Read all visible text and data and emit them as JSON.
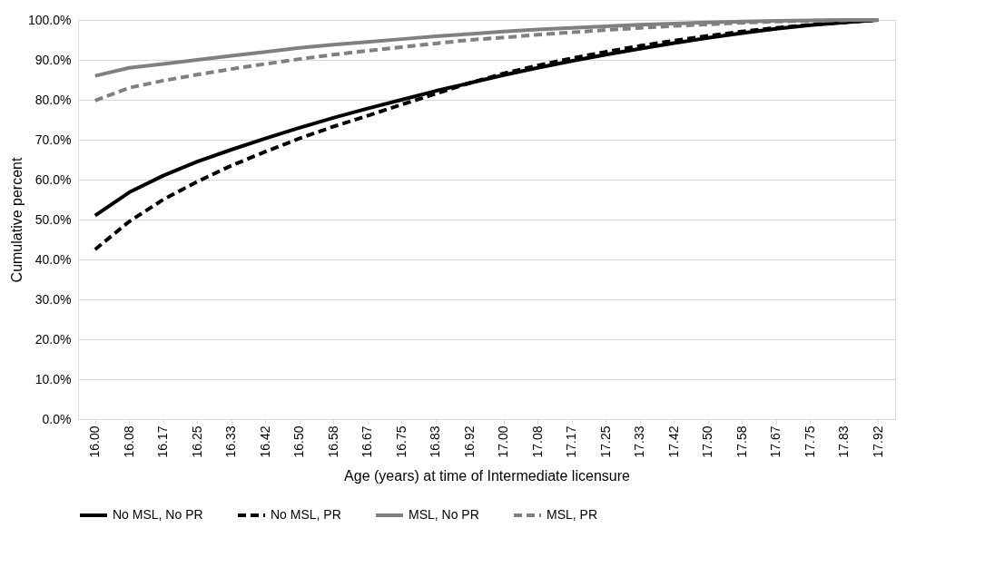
{
  "chart_data": {
    "type": "line",
    "xlabel": "Age (years) at time of Intermediate licensure",
    "ylabel": "Cumulative percent",
    "categories": [
      "16.00",
      "16.08",
      "16.17",
      "16.25",
      "16.33",
      "16.42",
      "16.50",
      "16.58",
      "16.67",
      "16.75",
      "16.83",
      "16.92",
      "17.00",
      "17.08",
      "17.17",
      "17.25",
      "17.33",
      "17.42",
      "17.50",
      "17.58",
      "17.67",
      "17.75",
      "17.83",
      "17.92"
    ],
    "series": [
      {
        "name": "No MSL, No PR",
        "color": "#000000",
        "line_style": "solid",
        "values": [
          51,
          56.8,
          61,
          64.5,
          67.5,
          70.3,
          73,
          75.5,
          77.8,
          80,
          82.2,
          84.2,
          86.2,
          88,
          89.7,
          91.3,
          92.8,
          94.2,
          95.5,
          96.7,
          97.8,
          98.7,
          99.4,
          100
        ]
      },
      {
        "name": "No MSL, PR",
        "color": "#000000",
        "line_style": "dashed",
        "values": [
          42.5,
          49.5,
          55,
          59.5,
          63.5,
          67,
          70.3,
          73.3,
          76,
          78.8,
          81.5,
          84.2,
          86.6,
          88.6,
          90.4,
          92,
          93.5,
          94.8,
          96,
          97.1,
          98,
          98.8,
          99.4,
          100
        ]
      },
      {
        "name": "MSL, No PR",
        "color": "#808080",
        "line_style": "solid",
        "values": [
          86,
          88,
          89,
          90,
          91,
          92,
          93,
          93.8,
          94.5,
          95.2,
          95.9,
          96.5,
          97.1,
          97.6,
          98,
          98.4,
          98.8,
          99.1,
          99.4,
          99.6,
          99.8,
          99.9,
          100,
          100
        ]
      },
      {
        "name": "MSL, PR",
        "color": "#808080",
        "line_style": "dashed",
        "values": [
          79.8,
          83,
          84.8,
          86.3,
          87.7,
          89,
          90.2,
          91.3,
          92.3,
          93.2,
          94.1,
          95,
          95.6,
          96.3,
          96.9,
          97.5,
          98,
          98.5,
          98.9,
          99.3,
          99.6,
          99.8,
          99.9,
          100
        ]
      }
    ],
    "ylim": [
      0,
      100
    ],
    "yticks": [
      {
        "value": 0,
        "label": "0.0%"
      },
      {
        "value": 10,
        "label": "10.0%"
      },
      {
        "value": 20,
        "label": "20.0%"
      },
      {
        "value": 30,
        "label": "30.0%"
      },
      {
        "value": 40,
        "label": "40.0%"
      },
      {
        "value": 50,
        "label": "50.0%"
      },
      {
        "value": 60,
        "label": "60.0%"
      },
      {
        "value": 70,
        "label": "70.0%"
      },
      {
        "value": 80,
        "label": "80.0%"
      },
      {
        "value": 90,
        "label": "90.0%"
      },
      {
        "value": 100,
        "label": "100.0%"
      }
    ],
    "grid": "y",
    "legend": "bottom",
    "marker": "none"
  }
}
